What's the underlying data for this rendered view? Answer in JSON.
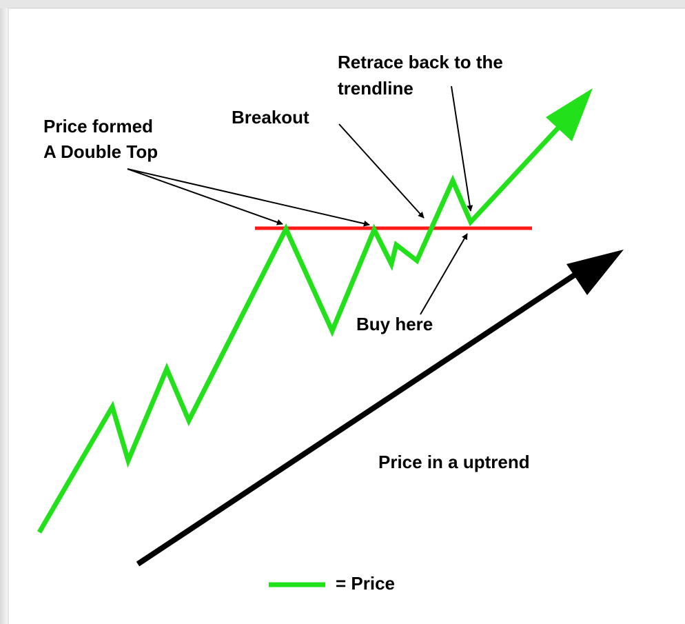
{
  "annotations": {
    "double_top": [
      "Price formed",
      "A Double Top"
    ],
    "breakout": "Breakout",
    "retrace": [
      "Retrace back to the",
      "trendline"
    ],
    "buy": "Buy here",
    "uptrend": "Price in a uptrend"
  },
  "legend": {
    "label": "= Price"
  }
}
